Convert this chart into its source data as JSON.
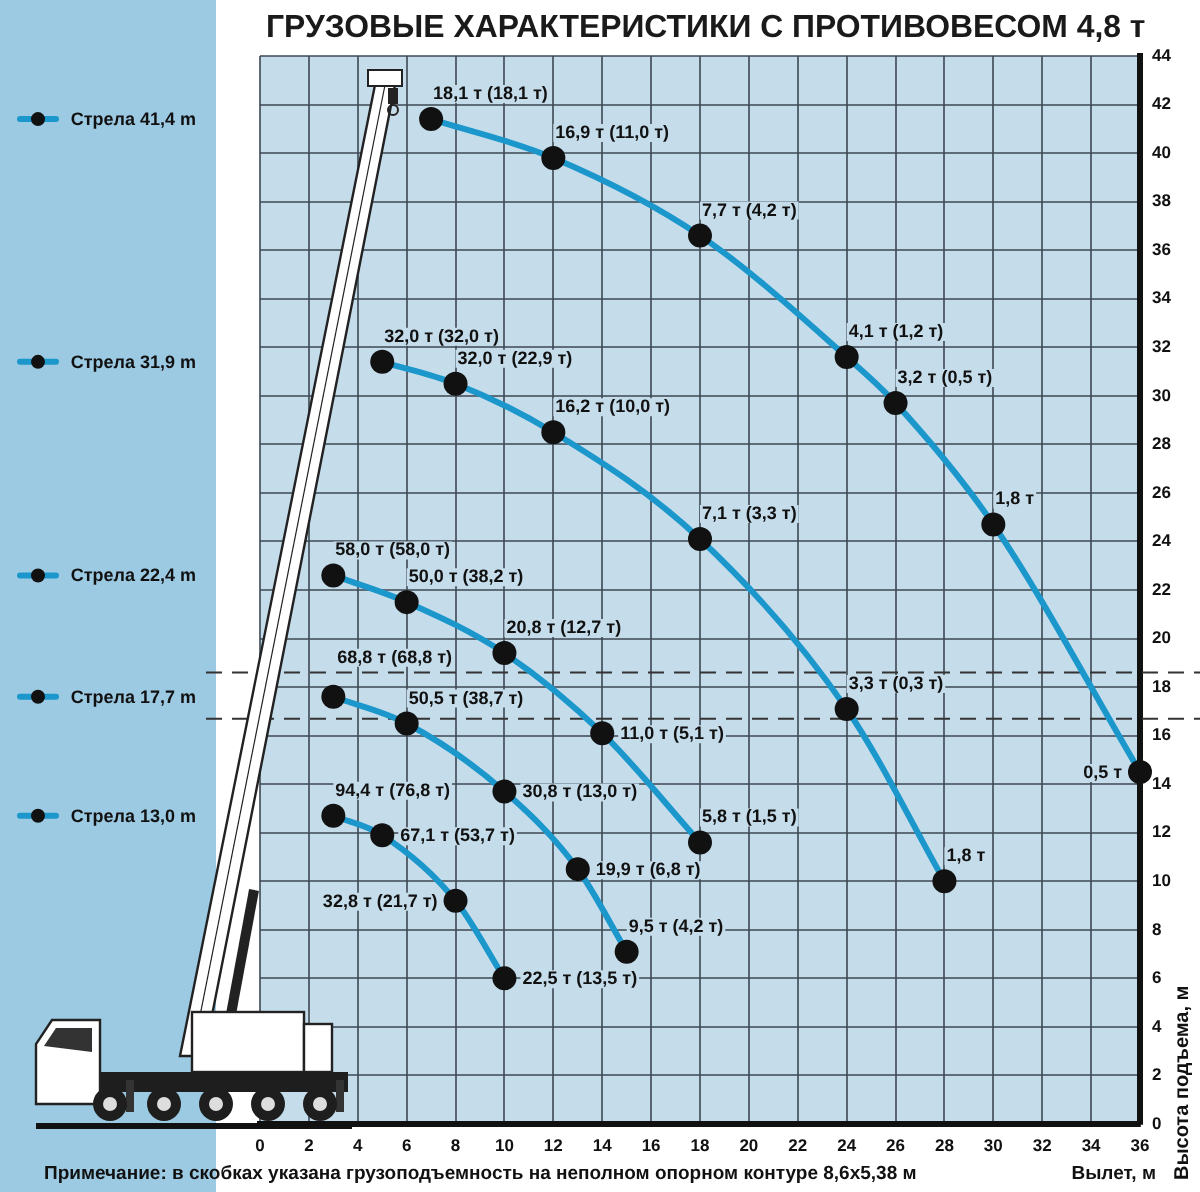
{
  "chart_data": {
    "type": "line",
    "title": "ГРУЗОВЫЕ ХАРАКТЕРИСТИКИ С ПРОТИВОВЕСОМ 4,8 т",
    "xlabel": "Вылет, м",
    "ylabel": "Высота подъема, м",
    "xlim": [
      0,
      36
    ],
    "xticks": [
      0,
      2,
      4,
      6,
      8,
      10,
      12,
      14,
      16,
      18,
      20,
      22,
      24,
      26,
      28,
      30,
      32,
      34,
      36
    ],
    "ylim": [
      0,
      44
    ],
    "yticks": [
      0,
      2,
      4,
      6,
      8,
      10,
      12,
      14,
      16,
      18,
      20,
      22,
      24,
      26,
      28,
      30,
      32,
      34,
      36,
      38,
      40,
      42,
      44
    ],
    "grid": true,
    "marker": "circle",
    "legend": "left",
    "series": [
      {
        "name": "Стрела 41,4 m",
        "color": "#1b97cc",
        "x": [
          7,
          12,
          18,
          24,
          26,
          30,
          36
        ],
        "values": [
          41.4,
          39.8,
          36.6,
          31.6,
          29.7,
          24.7,
          14.5
        ]
      },
      {
        "name": "Стрела 31,9 m",
        "color": "#1b97cc",
        "x": [
          5,
          8,
          12,
          18,
          24,
          28
        ],
        "values": [
          31.4,
          30.5,
          28.5,
          24.1,
          17.1,
          10
        ]
      },
      {
        "name": "Стрела 22,4 m",
        "color": "#1b97cc",
        "x": [
          3,
          6,
          10,
          14,
          18
        ],
        "values": [
          22.6,
          21.5,
          19.4,
          16.1,
          11.6
        ]
      },
      {
        "name": "Стрела 17,7 m",
        "color": "#1b97cc",
        "x": [
          3,
          6,
          10,
          13,
          15
        ],
        "values": [
          17.6,
          16.5,
          13.7,
          10.5,
          7.1
        ]
      },
      {
        "name": "Стрела 13,0 m",
        "color": "#1b97cc",
        "x": [
          3,
          5,
          8,
          10
        ],
        "values": [
          12.7,
          11.9,
          9.2,
          6
        ]
      }
    ],
    "ref_lines": [
      {
        "axis": "y",
        "value": 18.6,
        "color": "#333333",
        "line_style": "dashed"
      },
      {
        "axis": "y",
        "value": 16.7,
        "color": "#333333",
        "line_style": "dashed"
      }
    ],
    "annotations": [
      {
        "text": "18,1 т (18,1 т)",
        "x": 7,
        "y": 41.4
      },
      {
        "text": "16,9 т (11,0 т)",
        "x": 12,
        "y": 39.8
      },
      {
        "text": "7,7 т (4,2 т)",
        "x": 18,
        "y": 36.6
      },
      {
        "text": "4,1 т (1,2 т)",
        "x": 24,
        "y": 31.6
      },
      {
        "text": "3,2 т (0,5 т)",
        "x": 26,
        "y": 29.7
      },
      {
        "text": "1,8 т",
        "x": 30,
        "y": 24.7
      },
      {
        "text": "0,5 т",
        "x": 36,
        "y": 14.5
      },
      {
        "text": "32,0 т (32,0 т)",
        "x": 5,
        "y": 31.4
      },
      {
        "text": "32,0 т (22,9 т)",
        "x": 8,
        "y": 30.5
      },
      {
        "text": "16,2 т (10,0 т)",
        "x": 12,
        "y": 28.5
      },
      {
        "text": "7,1 т (3,3 т)",
        "x": 18,
        "y": 24.1
      },
      {
        "text": "3,3 т (0,3 т)",
        "x": 24,
        "y": 17.1
      },
      {
        "text": "1,8 т",
        "x": 28,
        "y": 10
      },
      {
        "text": "58,0 т (58,0 т)",
        "x": 3,
        "y": 22.6
      },
      {
        "text": "50,0 т (38,2 т)",
        "x": 6,
        "y": 21.5
      },
      {
        "text": "20,8 т (12,7 т)",
        "x": 10,
        "y": 19.4
      },
      {
        "text": "11,0 т (5,1 т)",
        "x": 14,
        "y": 16.1
      },
      {
        "text": "5,8 т (1,5 т)",
        "x": 18,
        "y": 11.6
      },
      {
        "text": "68,8 т (68,8 т)",
        "x": 3,
        "y": 17.6
      },
      {
        "text": "50,5 т (38,7 т)",
        "x": 6,
        "y": 16.5
      },
      {
        "text": "30,8 т (13,0 т)",
        "x": 10,
        "y": 13.7
      },
      {
        "text": "19,9 т (6,8 т)",
        "x": 13,
        "y": 10.5
      },
      {
        "text": "9,5 т (4,2 т)",
        "x": 15,
        "y": 7.1
      },
      {
        "text": "94,4 т (76,8 т)",
        "x": 3,
        "y": 12.7
      },
      {
        "text": "67,1 т (53,7 т)",
        "x": 5,
        "y": 11.9
      },
      {
        "text": "32,8 т (21,7 т)",
        "x": 8,
        "y": 9.2
      },
      {
        "text": "22,5 т (13,5 т)",
        "x": 10,
        "y": 6
      },
      "Примечание: в скобках указана грузоподъемность на неполном опорном контуре 8,6х5,38 м"
    ]
  }
}
